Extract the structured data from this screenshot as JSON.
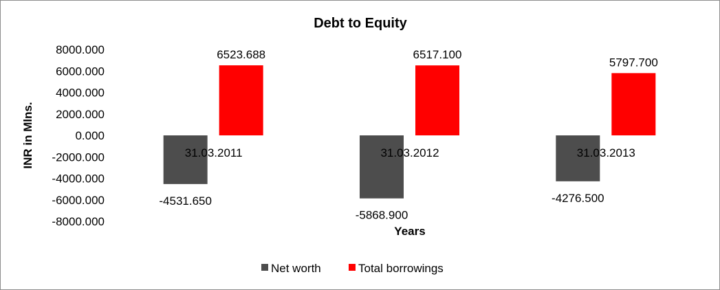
{
  "chart_data": {
    "type": "bar",
    "title": "Debt to Equity",
    "xlabel": "Years",
    "ylabel": "INR in Mlns.",
    "categories": [
      "31.03.2011",
      "31.03.2012",
      "31.03.2013"
    ],
    "series": [
      {
        "name": "Net worth",
        "values": [
          -4531.65,
          -5868.9,
          -4276.5
        ],
        "labels": [
          "-4531.650",
          "-5868.900",
          "-4276.500"
        ],
        "color": "#4d4d4d"
      },
      {
        "name": "Total borrowings",
        "values": [
          6523.688,
          6517.1,
          5797.7
        ],
        "labels": [
          "6523.688",
          "6517.100",
          "5797.700"
        ],
        "color": "#ff0000"
      }
    ],
    "ylim": [
      -8000,
      8000
    ],
    "yticks": [
      "8000.000",
      "6000.000",
      "4000.000",
      "2000.000",
      "0.000",
      "-2000.000",
      "-4000.000",
      "-6000.000",
      "-8000.000"
    ],
    "grid": false,
    "legend": "bottom"
  }
}
